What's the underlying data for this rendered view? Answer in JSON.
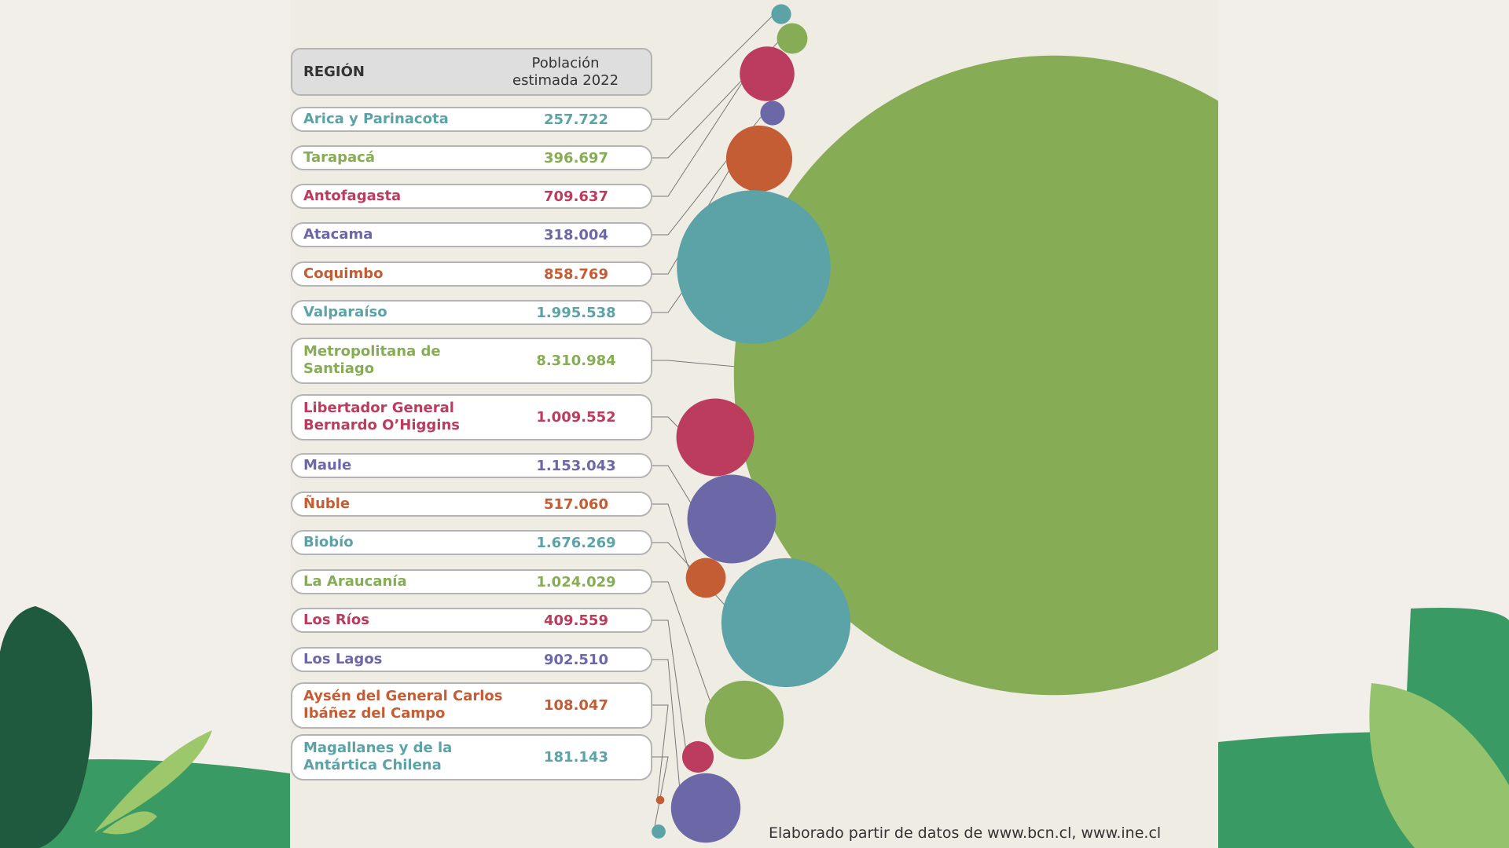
{
  "chart_data": {
    "type": "bubble",
    "headers": [
      "REGIÓN",
      "Población\nestimada 2022"
    ],
    "categories": [
      "Arica y Parinacota",
      "Tarapacá",
      "Antofagasta",
      "Atacama",
      "Coquimbo",
      "Valparaíso",
      "Metropolitana de\nSantiago",
      "Libertador General\nBernardo O’Higgins",
      "Maule",
      "Ñuble",
      "Biobío",
      "La Araucanía",
      "Los Ríos",
      "Los Lagos",
      "Aysén del General Carlos\nIbáñez del Campo",
      "Magallanes y de la\nAntártica Chilena"
    ],
    "values": [
      257722,
      396697,
      709637,
      318004,
      858769,
      1995538,
      8310984,
      1009552,
      1153043,
      517060,
      1676269,
      1024029,
      409559,
      902510,
      108047,
      181143
    ],
    "value_labels": [
      "257.722",
      "396.697",
      "709.637",
      "318.004",
      "858.769",
      "1.995.538",
      "8.310.984",
      "1.009.552",
      "1.153.043",
      "517.060",
      "1.676.269",
      "1.024.029",
      "409.559",
      "902.510",
      "108.047",
      "181.143"
    ],
    "colors": [
      "#5ba3a6",
      "#86ad55",
      "#bc3c5e",
      "#6c67a6",
      "#c45c34",
      "#5ba3a6",
      "#86ad55",
      "#bc3c5e",
      "#6c67a6",
      "#c45c34",
      "#5ba3a6",
      "#86ad55",
      "#bc3c5e",
      "#6c67a6",
      "#c45c34",
      "#5ba3a6"
    ],
    "source": "Elaborado partir de datos de www.bcn.cl, www.ine.cl"
  }
}
